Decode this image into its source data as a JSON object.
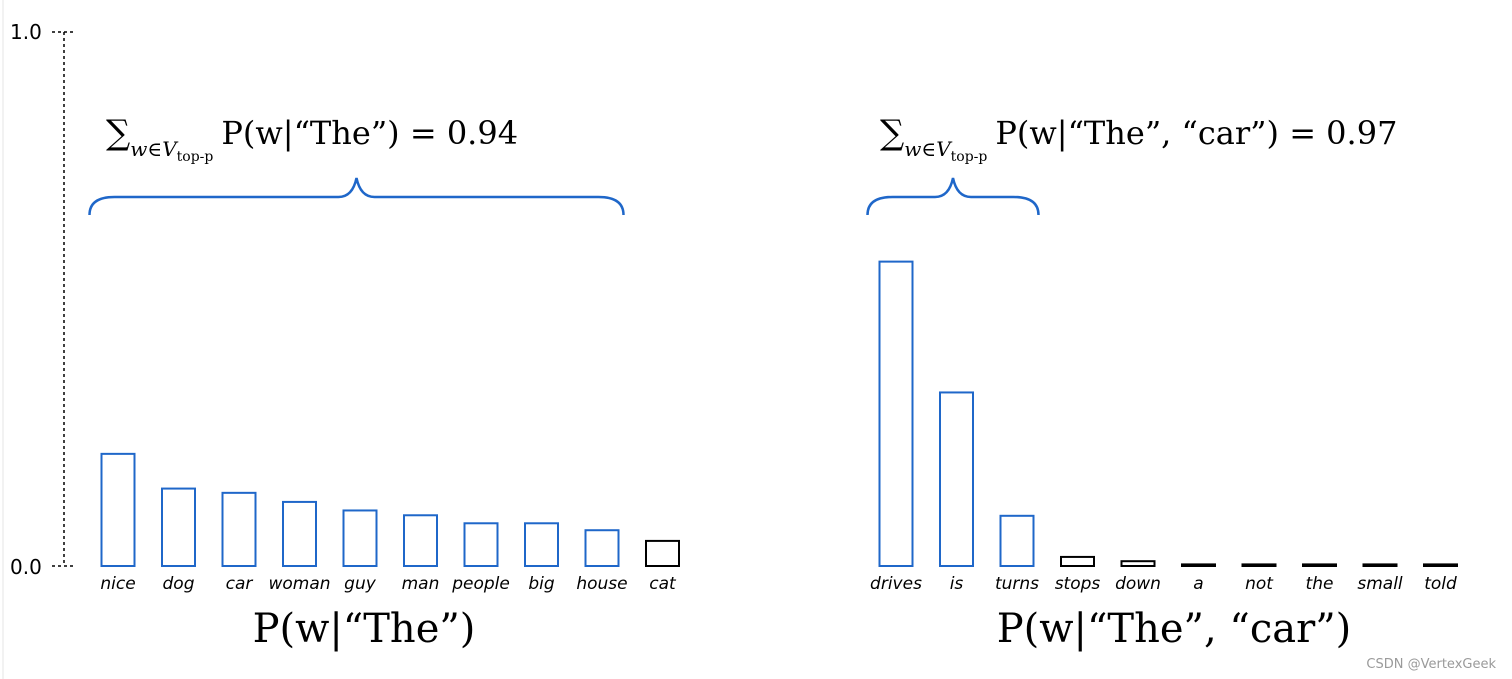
{
  "chart_data": [
    {
      "type": "bar",
      "categories": [
        "nice",
        "dog",
        "car",
        "woman",
        "guy",
        "man",
        "people",
        "big",
        "house",
        "cat"
      ],
      "values": [
        0.21,
        0.145,
        0.137,
        0.12,
        0.104,
        0.095,
        0.08,
        0.08,
        0.067,
        0.047
      ],
      "top_p_count": 9,
      "brace_label_parts": {
        "pre": "∑",
        "sub": "w∈V",
        "subsub": "top-p",
        "expr": "P(w|“The”) = 0.94"
      },
      "xlabel": "P(w|“The”)",
      "ylim": [
        0,
        1
      ],
      "yticks": [
        "0.0",
        "1.0"
      ]
    },
    {
      "type": "bar",
      "categories": [
        "drives",
        "is",
        "turns",
        "stops",
        "down",
        "a",
        "not",
        "the",
        "small",
        "told"
      ],
      "values": [
        0.57,
        0.325,
        0.094,
        0.017,
        0.009,
        0.003,
        0.003,
        0.003,
        0.003,
        0.003
      ],
      "top_p_count": 3,
      "brace_label_parts": {
        "pre": "∑",
        "sub": "w∈V",
        "subsub": "top-p",
        "expr": "P(w|“The”, “car”) = 0.97"
      },
      "xlabel": "P(w|“The”, “car”)",
      "ylim": [
        0,
        1
      ]
    }
  ],
  "colors": {
    "selected": "#1f67c9",
    "other": "#000000",
    "axis": "#000000"
  },
  "watermark": "CSDN @VertexGeek"
}
